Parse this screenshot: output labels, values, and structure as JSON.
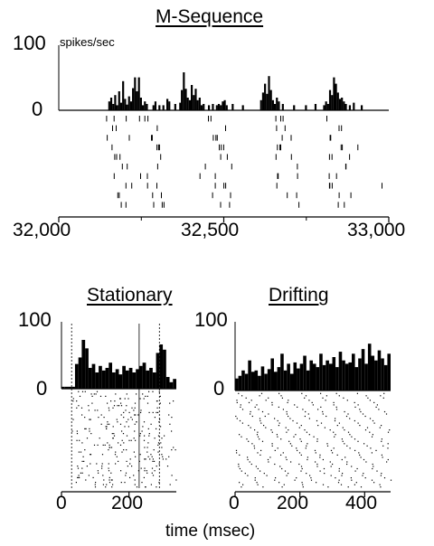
{
  "chart_data": [
    {
      "type": "bar",
      "panel": "m-sequence",
      "title": "M-Sequence",
      "ylabel": "spikes/sec",
      "ylim": [
        0,
        100
      ],
      "y_ticks": [
        "100",
        "0"
      ],
      "xlim": [
        32000,
        33000
      ],
      "x_ticks": [
        "32,000",
        "32,500",
        "33,000"
      ],
      "bin_width": 6,
      "x": [
        32150,
        32156,
        32162,
        32168,
        32174,
        32180,
        32186,
        32192,
        32198,
        32204,
        32210,
        32216,
        32222,
        32228,
        32234,
        32240,
        32246,
        32252,
        32258,
        32264,
        32284,
        32290,
        32302,
        32314,
        32326,
        32332,
        32350,
        32365,
        32370,
        32376,
        32382,
        32388,
        32394,
        32400,
        32406,
        32412,
        32418,
        32424,
        32430,
        32436,
        32452,
        32464,
        32476,
        32482,
        32488,
        32494,
        32500,
        32506,
        32524,
        32555,
        32610,
        32616,
        32622,
        32628,
        32634,
        32640,
        32646,
        32652,
        32658,
        32664,
        32676,
        32710,
        32746,
        32775,
        32801,
        32807,
        32813,
        32819,
        32825,
        32831,
        32837,
        32843,
        32849,
        32855,
        32861,
        32867,
        32879,
        32891,
        32915
      ],
      "values": [
        14,
        20,
        10,
        24,
        8,
        30,
        12,
        46,
        18,
        9,
        22,
        14,
        35,
        52,
        30,
        52,
        20,
        8,
        14,
        10,
        8,
        14,
        8,
        8,
        18,
        14,
        10,
        12,
        32,
        60,
        34,
        20,
        16,
        40,
        24,
        34,
        16,
        20,
        8,
        10,
        8,
        10,
        8,
        10,
        8,
        14,
        16,
        8,
        10,
        8,
        16,
        28,
        42,
        26,
        54,
        32,
        16,
        10,
        20,
        14,
        10,
        8,
        8,
        10,
        8,
        14,
        10,
        32,
        24,
        52,
        42,
        28,
        18,
        20,
        14,
        10,
        8,
        12,
        8
      ],
      "raster_rows": 10,
      "raster_clusters": [
        32175,
        32270,
        32480,
        32680,
        32840
      ],
      "bar_color": "#000000"
    },
    {
      "type": "bar",
      "panel": "stationary",
      "title": "Stationary",
      "ylim": [
        0,
        100
      ],
      "y_ticks": [
        "100",
        "0"
      ],
      "xlim": [
        0,
        340
      ],
      "x_ticks": [
        "0",
        "200"
      ],
      "x_tick_values": [
        0,
        200
      ],
      "bin_width": 10,
      "x": [
        0,
        10,
        20,
        30,
        40,
        50,
        60,
        70,
        80,
        90,
        100,
        110,
        120,
        130,
        140,
        150,
        160,
        170,
        180,
        190,
        200,
        210,
        220,
        230,
        240,
        250,
        260,
        270,
        280,
        290,
        300,
        310,
        320,
        330
      ],
      "values": [
        3,
        3,
        3,
        3,
        38,
        48,
        75,
        62,
        32,
        38,
        25,
        35,
        28,
        32,
        40,
        25,
        30,
        22,
        35,
        28,
        32,
        25,
        30,
        35,
        40,
        28,
        32,
        25,
        55,
        68,
        60,
        18,
        10,
        15
      ],
      "markers": [
        30,
        230,
        290
      ]
    },
    {
      "type": "bar",
      "panel": "drifting",
      "title": "Drifting",
      "ylim": [
        0,
        100
      ],
      "y_ticks": [
        "100",
        "0"
      ],
      "xlim": [
        0,
        480
      ],
      "x_ticks": [
        "0",
        "200",
        "400"
      ],
      "x_tick_values": [
        0,
        200,
        400
      ],
      "bin_width": 10,
      "x": [
        0,
        10,
        20,
        30,
        40,
        50,
        60,
        70,
        80,
        90,
        100,
        110,
        120,
        130,
        140,
        150,
        160,
        170,
        180,
        190,
        200,
        210,
        220,
        230,
        240,
        250,
        260,
        270,
        280,
        290,
        300,
        310,
        320,
        330,
        340,
        350,
        360,
        370,
        380,
        390,
        400,
        410,
        420,
        430,
        440,
        450,
        460,
        470
      ],
      "values": [
        18,
        22,
        30,
        25,
        45,
        28,
        30,
        22,
        36,
        25,
        32,
        48,
        28,
        35,
        55,
        30,
        40,
        25,
        42,
        33,
        40,
        52,
        30,
        45,
        40,
        35,
        55,
        38,
        45,
        40,
        50,
        35,
        58,
        45,
        40,
        42,
        55,
        35,
        48,
        62,
        40,
        70,
        52,
        45,
        60,
        48,
        38,
        55
      ]
    }
  ],
  "axis_caption": "time (msec)"
}
